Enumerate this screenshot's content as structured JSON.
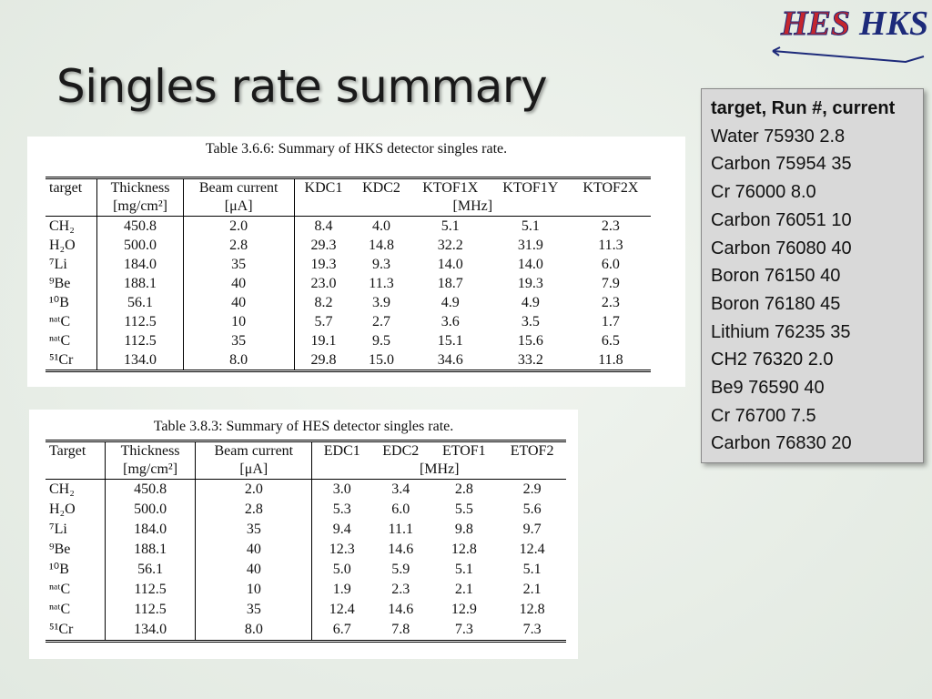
{
  "title": "Singles rate summary",
  "logo": {
    "left": "HES",
    "right": "HKS"
  },
  "tables": [
    {
      "caption": "Table 3.6.6: Summary of HKS detector singles rate.",
      "header": [
        "target",
        "Thickness",
        "Beam current",
        "KDC1",
        "KDC2",
        "KTOF1X",
        "KTOF1Y",
        "KTOF2X"
      ],
      "units": [
        "[mg/cm²]",
        "[μA]",
        "[MHz]"
      ],
      "rows": [
        [
          "CH₂",
          "450.8",
          "2.0",
          "8.4",
          "4.0",
          "5.1",
          "5.1",
          "2.3"
        ],
        [
          "H₂O",
          "500.0",
          "2.8",
          "29.3",
          "14.8",
          "32.2",
          "31.9",
          "11.3"
        ],
        [
          "⁷Li",
          "184.0",
          "35",
          "19.3",
          "9.3",
          "14.0",
          "14.0",
          "6.0"
        ],
        [
          "⁹Be",
          "188.1",
          "40",
          "23.0",
          "11.3",
          "18.7",
          "19.3",
          "7.9"
        ],
        [
          "¹⁰B",
          "56.1",
          "40",
          "8.2",
          "3.9",
          "4.9",
          "4.9",
          "2.3"
        ],
        [
          "ⁿᵃᵗC",
          "112.5",
          "10",
          "5.7",
          "2.7",
          "3.6",
          "3.5",
          "1.7"
        ],
        [
          "ⁿᵃᵗC",
          "112.5",
          "35",
          "19.1",
          "9.5",
          "15.1",
          "15.6",
          "6.5"
        ],
        [
          "⁵¹Cr",
          "134.0",
          "8.0",
          "29.8",
          "15.0",
          "34.6",
          "33.2",
          "11.8"
        ]
      ]
    },
    {
      "caption": "Table 3.8.3: Summary of HES detector singles rate.",
      "header": [
        "Target",
        "Thickness",
        "Beam current",
        "EDC1",
        "EDC2",
        "ETOF1",
        "ETOF2"
      ],
      "units": [
        "[mg/cm²]",
        "[μA]",
        "[MHz]"
      ],
      "rows": [
        [
          "CH₂",
          "450.8",
          "2.0",
          "3.0",
          "3.4",
          "2.8",
          "2.9"
        ],
        [
          "H₂O",
          "500.0",
          "2.8",
          "5.3",
          "6.0",
          "5.5",
          "5.6"
        ],
        [
          "⁷Li",
          "184.0",
          "35",
          "9.4",
          "11.1",
          "9.8",
          "9.7"
        ],
        [
          "⁹Be",
          "188.1",
          "40",
          "12.3",
          "14.6",
          "12.8",
          "12.4"
        ],
        [
          "¹⁰B",
          "56.1",
          "40",
          "5.0",
          "5.9",
          "5.1",
          "5.1"
        ],
        [
          "ⁿᵃᵗC",
          "112.5",
          "10",
          "1.9",
          "2.3",
          "2.1",
          "2.1"
        ],
        [
          "ⁿᵃᵗC",
          "112.5",
          "35",
          "12.4",
          "14.6",
          "12.9",
          "12.8"
        ],
        [
          "⁵¹Cr",
          "134.0",
          "8.0",
          "6.7",
          "7.8",
          "7.3",
          "7.3"
        ]
      ]
    }
  ],
  "run_list": {
    "heading": "target, Run #, current",
    "items": [
      "Water 75930 2.8",
      "Carbon 75954 35",
      "Cr 76000 8.0",
      "Carbon 76051 10",
      "Carbon 76080 40",
      "Boron 76150 40",
      "Boron 76180 45",
      "Lithium 76235 35",
      "CH2 76320 2.0",
      "Be9 76590 40",
      "Cr 76700 7.5",
      "Carbon 76830 20"
    ]
  }
}
